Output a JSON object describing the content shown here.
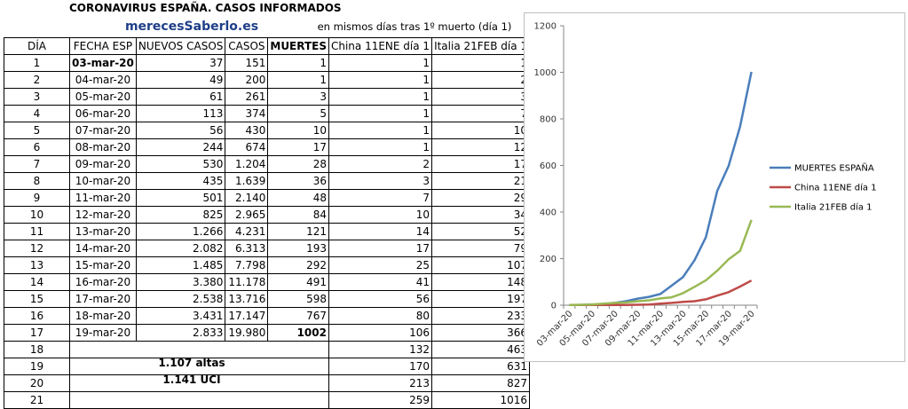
{
  "title": "CORONAVIRUS ESPAÑA. CASOS INFORMADOS",
  "site": "merecesSaberlo.es",
  "note": "en mismos días tras 1º muerto (día 1)",
  "columns": [
    "DÍA",
    "FECHA ESP",
    "NUEVOS CASOS",
    "CASOS",
    "MUERTES",
    "China 11ENE día 1",
    "Italia 21FEB día 1"
  ],
  "rows": [
    [
      "1",
      "03-mar-20",
      "37",
      "151",
      "1",
      "1",
      "1"
    ],
    [
      "2",
      "04-mar-20",
      "49",
      "200",
      "1",
      "1",
      "2"
    ],
    [
      "3",
      "05-mar-20",
      "61",
      "261",
      "3",
      "1",
      "3"
    ],
    [
      "4",
      "06-mar-20",
      "113",
      "374",
      "5",
      "1",
      "7"
    ],
    [
      "5",
      "07-mar-20",
      "56",
      "430",
      "10",
      "1",
      "10"
    ],
    [
      "6",
      "08-mar-20",
      "244",
      "674",
      "17",
      "1",
      "12"
    ],
    [
      "7",
      "09-mar-20",
      "530",
      "1.204",
      "28",
      "2",
      "17"
    ],
    [
      "8",
      "10-mar-20",
      "435",
      "1.639",
      "36",
      "3",
      "21"
    ],
    [
      "9",
      "11-mar-20",
      "501",
      "2.140",
      "48",
      "7",
      "29"
    ],
    [
      "10",
      "12-mar-20",
      "825",
      "2.965",
      "84",
      "10",
      "34"
    ],
    [
      "11",
      "13-mar-20",
      "1.266",
      "4.231",
      "121",
      "14",
      "52"
    ],
    [
      "12",
      "14-mar-20",
      "2.082",
      "6.313",
      "193",
      "17",
      "79"
    ],
    [
      "13",
      "15-mar-20",
      "1.485",
      "7.798",
      "292",
      "25",
      "107"
    ],
    [
      "14",
      "16-mar-20",
      "3.380",
      "11.178",
      "491",
      "41",
      "148"
    ],
    [
      "15",
      "17-mar-20",
      "2.538",
      "13.716",
      "598",
      "56",
      "197"
    ],
    [
      "16",
      "18-mar-20",
      "3.431",
      "17.147",
      "767",
      "80",
      "233"
    ],
    [
      "17",
      "19-mar-20",
      "2.833",
      "19.980",
      "1002",
      "106",
      "366"
    ],
    [
      "18",
      "",
      "",
      "",
      "",
      "132",
      "463"
    ],
    [
      "19",
      "",
      "",
      "",
      "",
      "170",
      "631"
    ],
    [
      "20",
      "",
      "",
      "",
      "",
      "213",
      "827"
    ],
    [
      "21",
      "",
      "",
      "",
      "",
      "259",
      "1016"
    ]
  ],
  "summary": {
    "altas": "1.107 altas",
    "uci": "1.141 UCI"
  },
  "chart_data": {
    "type": "line",
    "title": "",
    "xlabel": "",
    "ylabel": "",
    "categories": [
      "03-mar-20",
      "04-mar-20",
      "05-mar-20",
      "06-mar-20",
      "07-mar-20",
      "08-mar-20",
      "09-mar-20",
      "10-mar-20",
      "11-mar-20",
      "12-mar-20",
      "13-mar-20",
      "14-mar-20",
      "15-mar-20",
      "16-mar-20",
      "17-mar-20",
      "18-mar-20",
      "19-mar-20"
    ],
    "x_tick_labels": [
      "03-mar-20",
      "05-mar-20",
      "07-mar-20",
      "09-mar-20",
      "11-mar-20",
      "13-mar-20",
      "15-mar-20",
      "17-mar-20",
      "19-mar-20"
    ],
    "ylim": [
      0,
      1200
    ],
    "yticks": [
      0,
      200,
      400,
      600,
      800,
      1000,
      1200
    ],
    "grid": false,
    "legend": "right",
    "series": [
      {
        "name": "MUERTES  ESPAÑA",
        "color": "#4a7ebb",
        "values": [
          1,
          1,
          3,
          5,
          10,
          17,
          28,
          36,
          48,
          84,
          121,
          193,
          292,
          491,
          598,
          767,
          1002
        ]
      },
      {
        "name": "China 11ENE día 1",
        "color": "#be4b48",
        "values": [
          1,
          1,
          1,
          1,
          1,
          1,
          2,
          3,
          7,
          10,
          14,
          17,
          25,
          41,
          56,
          80,
          106
        ]
      },
      {
        "name": "Italia 21FEB día 1",
        "color": "#98b954",
        "values": [
          1,
          2,
          3,
          7,
          10,
          12,
          17,
          21,
          29,
          34,
          52,
          79,
          107,
          148,
          197,
          233,
          366
        ]
      }
    ]
  }
}
